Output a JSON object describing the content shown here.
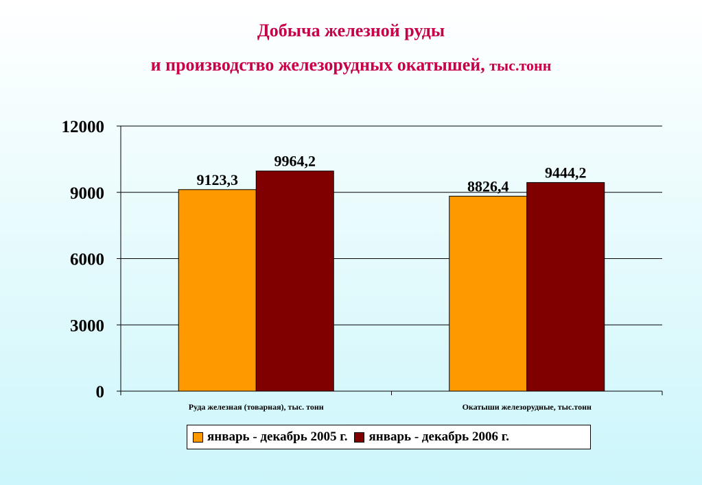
{
  "title": {
    "line1": "Добыча железной руды",
    "line2": "и производство железорудных окатышей,",
    "unit": "тыс.тонн"
  },
  "chart_data": {
    "type": "bar",
    "categories": [
      "Руда железная (товарная), тыс. тонн",
      "Окатыши железорудные, тыс.тонн"
    ],
    "series": [
      {
        "name": "январь - декабрь 2005 г.",
        "values": [
          9123.3,
          8826.4
        ],
        "labels": [
          "9123,3",
          "8826,4"
        ],
        "color": "#ff9900"
      },
      {
        "name": "январь - декабрь 2006 г.",
        "values": [
          9964.2,
          9444.2
        ],
        "labels": [
          "9964,2",
          "9444,2"
        ],
        "color": "#800000"
      }
    ],
    "ylim": [
      0,
      12000
    ],
    "yticks": [
      0,
      3000,
      6000,
      9000,
      12000
    ],
    "ytick_labels": [
      "0",
      "3000",
      "6000",
      "9000",
      "12000"
    ],
    "grid": true,
    "legend": "bottom"
  }
}
